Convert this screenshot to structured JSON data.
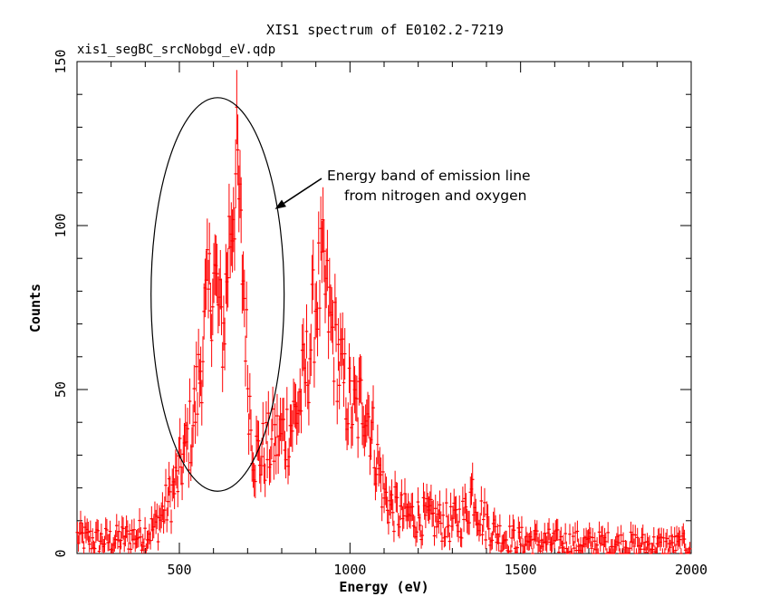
{
  "chart_data": {
    "type": "scatter",
    "title": "XIS1 spectrum of E0102.2-7219",
    "subtitle": "xis1_segBC_srcNobgd_eV.qdp",
    "xlabel": "Energy (eV)",
    "ylabel": "Counts",
    "xlim": [
      200,
      2000
    ],
    "ylim": [
      0,
      150
    ],
    "x_ticks": [
      500,
      1000,
      1500,
      2000
    ],
    "y_ticks": [
      0,
      50,
      100,
      150
    ],
    "annotation": {
      "line1": "Energy band of emission line",
      "line2": "from nitrogen and oxygen",
      "ellipse_center": [
        612,
        79
      ],
      "ellipse_x_radius": 195,
      "ellipse_y_radius": 60,
      "arrow_tip": [
        780,
        105
      ]
    },
    "series_color": "#ff0000",
    "profile": [
      [
        200,
        5
      ],
      [
        250,
        4
      ],
      [
        300,
        4
      ],
      [
        350,
        5
      ],
      [
        400,
        6
      ],
      [
        430,
        8
      ],
      [
        460,
        14
      ],
      [
        490,
        21
      ],
      [
        520,
        32
      ],
      [
        540,
        40
      ],
      [
        560,
        55
      ],
      [
        580,
        75
      ],
      [
        600,
        85
      ],
      [
        610,
        80
      ],
      [
        620,
        70
      ],
      [
        630,
        68
      ],
      [
        645,
        95
      ],
      [
        660,
        110
      ],
      [
        670,
        118
      ],
      [
        680,
        95
      ],
      [
        690,
        80
      ],
      [
        700,
        55
      ],
      [
        710,
        40
      ],
      [
        720,
        30
      ],
      [
        740,
        30
      ],
      [
        760,
        32
      ],
      [
        790,
        35
      ],
      [
        820,
        38
      ],
      [
        850,
        45
      ],
      [
        880,
        60
      ],
      [
        900,
        78
      ],
      [
        920,
        85
      ],
      [
        940,
        72
      ],
      [
        960,
        62
      ],
      [
        980,
        52
      ],
      [
        1000,
        45
      ],
      [
        1020,
        42
      ],
      [
        1040,
        48
      ],
      [
        1060,
        40
      ],
      [
        1080,
        28
      ],
      [
        1100,
        18
      ],
      [
        1120,
        14
      ],
      [
        1150,
        12
      ],
      [
        1200,
        11
      ],
      [
        1250,
        10
      ],
      [
        1300,
        9
      ],
      [
        1340,
        12
      ],
      [
        1360,
        20
      ],
      [
        1380,
        12
      ],
      [
        1420,
        7
      ],
      [
        1450,
        5
      ],
      [
        1500,
        4
      ],
      [
        1600,
        3.5
      ],
      [
        1700,
        3
      ],
      [
        1800,
        3
      ],
      [
        1900,
        2.5
      ],
      [
        2000,
        2.5
      ]
    ]
  }
}
